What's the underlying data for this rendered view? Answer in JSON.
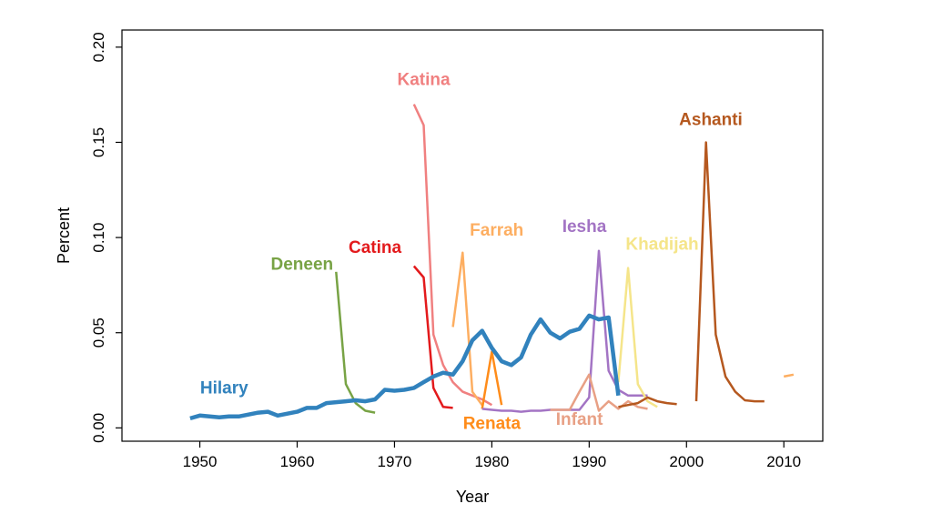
{
  "chart_data": {
    "type": "line",
    "title": "",
    "xlabel": "Year",
    "ylabel": "Percent",
    "xlim": [
      1942,
      2014
    ],
    "ylim": [
      -0.007,
      0.209
    ],
    "xticks": [
      1950,
      1960,
      1970,
      1980,
      1990,
      2000,
      2010
    ],
    "yticks": [
      0.0,
      0.05,
      0.1,
      0.15,
      0.2
    ],
    "ytick_labels": [
      "0.00",
      "0.05",
      "0.10",
      "0.15",
      "0.20"
    ],
    "series": [
      {
        "name": "Hilary",
        "color": "#3182bd",
        "emphasis": true,
        "label_x": 1952.5,
        "label_y": 0.018,
        "x": [
          1949,
          1950,
          1951,
          1952,
          1953,
          1954,
          1955,
          1956,
          1957,
          1958,
          1959,
          1960,
          1961,
          1962,
          1963,
          1964,
          1965,
          1966,
          1967,
          1968,
          1969,
          1970,
          1971,
          1972,
          1973,
          1974,
          1975,
          1976,
          1977,
          1978,
          1979,
          1980,
          1981,
          1982,
          1983,
          1984,
          1985,
          1986,
          1987,
          1988,
          1989,
          1990,
          1991,
          1992,
          1993
        ],
        "y": [
          0.005,
          0.0065,
          0.006,
          0.0055,
          0.006,
          0.006,
          0.007,
          0.008,
          0.0085,
          0.0065,
          0.0075,
          0.0085,
          0.0105,
          0.0105,
          0.013,
          0.0135,
          0.014,
          0.0145,
          0.014,
          0.015,
          0.02,
          0.0195,
          0.02,
          0.021,
          0.024,
          0.027,
          0.029,
          0.028,
          0.035,
          0.046,
          0.051,
          0.042,
          0.035,
          0.033,
          0.037,
          0.049,
          0.057,
          0.05,
          0.047,
          0.0505,
          0.052,
          0.059,
          0.057,
          0.058,
          0.017
        ]
      },
      {
        "name": "Deneen",
        "color": "#78a345",
        "label_x": 1960.5,
        "label_y": 0.083,
        "x": [
          1964,
          1965,
          1966,
          1967,
          1968
        ],
        "y": [
          0.082,
          0.023,
          0.013,
          0.009,
          0.008
        ]
      },
      {
        "name": "Katina",
        "color": "#f08080",
        "label_x": 1973,
        "label_y": 0.18,
        "x": [
          1972,
          1973,
          1974,
          1975,
          1976,
          1977,
          1978,
          1979,
          1980
        ],
        "y": [
          0.17,
          0.159,
          0.049,
          0.033,
          0.024,
          0.019,
          0.017,
          0.015,
          0.012
        ]
      },
      {
        "name": "Catina",
        "color": "#e31a1c",
        "label_x": 1968,
        "label_y": 0.092,
        "x": [
          1972,
          1973,
          1974,
          1975,
          1976
        ],
        "y": [
          0.085,
          0.079,
          0.021,
          0.011,
          0.0105
        ]
      },
      {
        "name": "Farrah",
        "color": "#fdae61",
        "label_x": 1980.5,
        "label_y": 0.101,
        "x": [
          1976,
          1977,
          1978,
          1979
        ],
        "y": [
          0.053,
          0.092,
          0.019,
          0.012
        ]
      },
      {
        "name": "Renata",
        "color": "#ff8c1a",
        "label_x": 1980,
        "label_y": -0.0005,
        "x": [
          1979,
          1980,
          1981
        ],
        "y": [
          0.01,
          0.04,
          0.012
        ]
      },
      {
        "name": "Iesha",
        "color": "#a374c4",
        "label_x": 1989.5,
        "label_y": 0.103,
        "x": [
          1979,
          1980,
          1981,
          1982,
          1983,
          1984,
          1985,
          1986,
          1987,
          1988,
          1989,
          1990,
          1991,
          1992,
          1993,
          1994,
          1995,
          1996
        ],
        "y": [
          0.01,
          0.0095,
          0.009,
          0.009,
          0.0085,
          0.009,
          0.009,
          0.0095,
          0.0095,
          0.0095,
          0.0095,
          0.016,
          0.093,
          0.03,
          0.02,
          0.017,
          0.017,
          0.017
        ]
      },
      {
        "name": "Infant",
        "color": "#e8a085",
        "label_x": 1989,
        "label_y": 0.0015,
        "x": [
          1986,
          1987,
          1988,
          1989,
          1990,
          1991,
          1992,
          1993,
          1994,
          1995,
          1996
        ],
        "y": [
          0.0095,
          0.0095,
          0.0095,
          0.019,
          0.028,
          0.009,
          0.014,
          0.01,
          0.014,
          0.011,
          0.01
        ]
      },
      {
        "name": "Khadijah",
        "color": "#f5e58a",
        "label_x": 1997.5,
        "label_y": 0.0935,
        "x": [
          1993,
          1994,
          1995,
          1996,
          1997
        ],
        "y": [
          0.024,
          0.084,
          0.023,
          0.014,
          0.011
        ]
      },
      {
        "name": "Ashanti",
        "color": "#b5581f",
        "label_x": 2002.5,
        "label_y": 0.159,
        "x": [
          1993,
          1994,
          1995,
          1996,
          1997,
          1998,
          1999,
          2000,
          2001,
          2002,
          2003,
          2004,
          2005,
          2006,
          2007,
          2008
        ],
        "y": [
          0.011,
          0.012,
          0.013,
          0.016,
          0.014,
          0.013,
          0.0125,
          null,
          0.014,
          0.15,
          0.049,
          0.027,
          0.019,
          0.0145,
          0.014,
          0.014
        ],
        "points": [
          [
            1993,
            0.011
          ],
          [
            1994,
            0.012
          ],
          [
            1995,
            0.013
          ],
          [
            1996,
            0.016
          ],
          [
            1997,
            0.014
          ],
          [
            1998,
            0.013
          ],
          [
            1999,
            0.0125
          ],
          [
            2001,
            0.014
          ],
          [
            2002,
            0.15
          ],
          [
            2003,
            0.049
          ],
          [
            2004,
            0.027
          ],
          [
            2005,
            0.019
          ],
          [
            2006,
            0.0145
          ],
          [
            2007,
            0.014
          ],
          [
            2008,
            0.014
          ]
        ]
      },
      {
        "name": "",
        "color": "#fdae61",
        "x": [
          2010,
          2011
        ],
        "y": [
          0.027,
          0.028
        ]
      }
    ]
  }
}
